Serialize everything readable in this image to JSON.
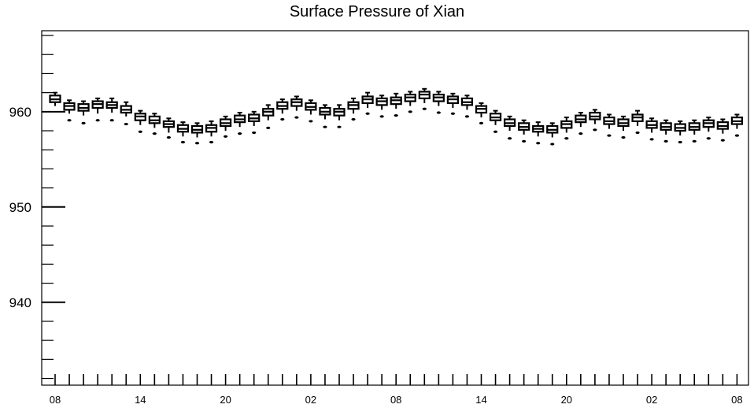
{
  "chart_data": {
    "type": "box",
    "title": "Surface Pressure of Xian",
    "xlabel": "",
    "ylabel": "",
    "ylim": [
      931.3,
      968.5
    ],
    "y_major_ticks": [
      940,
      950,
      960
    ],
    "x_tick_labels": [
      "08",
      "14",
      "20",
      "02",
      "08",
      "14",
      "20",
      "02",
      "08"
    ],
    "x_label_interval_hours": 6,
    "time_step_hours": 1,
    "grid": false,
    "legend": "none",
    "boxes": [
      {
        "t": 0,
        "q1": 961.0,
        "median": 961.3,
        "q3": 961.7,
        "whisker_low": 960.6,
        "whisker_high": 962.0,
        "outlier": null
      },
      {
        "t": 1,
        "q1": 960.2,
        "median": 960.6,
        "q3": 960.9,
        "whisker_low": 959.8,
        "whisker_high": 961.2,
        "outlier": 959.1
      },
      {
        "t": 2,
        "q1": 960.1,
        "median": 960.4,
        "q3": 960.8,
        "whisker_low": 959.6,
        "whisker_high": 961.1,
        "outlier": 958.8
      },
      {
        "t": 3,
        "q1": 960.4,
        "median": 960.8,
        "q3": 961.1,
        "whisker_low": 959.8,
        "whisker_high": 961.4,
        "outlier": 959.1
      },
      {
        "t": 4,
        "q1": 960.4,
        "median": 960.7,
        "q3": 961.0,
        "whisker_low": 959.9,
        "whisker_high": 961.4,
        "outlier": 959.1
      },
      {
        "t": 5,
        "q1": 959.9,
        "median": 960.2,
        "q3": 960.6,
        "whisker_low": 959.5,
        "whisker_high": 961.0,
        "outlier": 958.7
      },
      {
        "t": 6,
        "q1": 959.1,
        "median": 959.5,
        "q3": 959.8,
        "whisker_low": 958.6,
        "whisker_high": 960.1,
        "outlier": 957.9
      },
      {
        "t": 7,
        "q1": 958.8,
        "median": 959.1,
        "q3": 959.5,
        "whisker_low": 958.3,
        "whisker_high": 959.8,
        "outlier": 957.7
      },
      {
        "t": 8,
        "q1": 958.4,
        "median": 958.7,
        "q3": 959.0,
        "whisker_low": 957.8,
        "whisker_high": 959.3,
        "outlier": 957.3
      },
      {
        "t": 9,
        "q1": 957.9,
        "median": 958.2,
        "q3": 958.6,
        "whisker_low": 957.4,
        "whisker_high": 958.9,
        "outlier": 956.8
      },
      {
        "t": 10,
        "q1": 957.8,
        "median": 958.1,
        "q3": 958.5,
        "whisker_low": 957.3,
        "whisker_high": 958.8,
        "outlier": 956.7
      },
      {
        "t": 11,
        "q1": 957.9,
        "median": 958.3,
        "q3": 958.6,
        "whisker_low": 957.4,
        "whisker_high": 959.0,
        "outlier": 956.8
      },
      {
        "t": 12,
        "q1": 958.5,
        "median": 958.8,
        "q3": 959.2,
        "whisker_low": 958.0,
        "whisker_high": 959.5,
        "outlier": 957.4
      },
      {
        "t": 13,
        "q1": 958.9,
        "median": 959.2,
        "q3": 959.6,
        "whisker_low": 958.4,
        "whisker_high": 959.9,
        "outlier": 957.7
      },
      {
        "t": 14,
        "q1": 959.0,
        "median": 959.3,
        "q3": 959.7,
        "whisker_low": 958.5,
        "whisker_high": 960.0,
        "outlier": 957.8
      },
      {
        "t": 15,
        "q1": 959.6,
        "median": 960.0,
        "q3": 960.3,
        "whisker_low": 959.1,
        "whisker_high": 960.7,
        "outlier": 958.3
      },
      {
        "t": 16,
        "q1": 960.3,
        "median": 960.6,
        "q3": 961.0,
        "whisker_low": 959.8,
        "whisker_high": 961.3,
        "outlier": 959.2
      },
      {
        "t": 17,
        "q1": 960.6,
        "median": 961.0,
        "q3": 961.3,
        "whisker_low": 960.1,
        "whisker_high": 961.6,
        "outlier": 959.4
      },
      {
        "t": 18,
        "q1": 960.2,
        "median": 960.5,
        "q3": 960.9,
        "whisker_low": 959.7,
        "whisker_high": 961.2,
        "outlier": 959.0
      },
      {
        "t": 19,
        "q1": 959.7,
        "median": 960.0,
        "q3": 960.4,
        "whisker_low": 959.2,
        "whisker_high": 960.7,
        "outlier": 958.4
      },
      {
        "t": 20,
        "q1": 959.6,
        "median": 960.0,
        "q3": 960.3,
        "whisker_low": 959.1,
        "whisker_high": 960.7,
        "outlier": 958.4
      },
      {
        "t": 21,
        "q1": 960.3,
        "median": 960.7,
        "q3": 961.0,
        "whisker_low": 959.8,
        "whisker_high": 961.4,
        "outlier": 959.2
      },
      {
        "t": 22,
        "q1": 960.9,
        "median": 961.3,
        "q3": 961.6,
        "whisker_low": 960.4,
        "whisker_high": 962.0,
        "outlier": 959.8
      },
      {
        "t": 23,
        "q1": 960.7,
        "median": 961.1,
        "q3": 961.4,
        "whisker_low": 960.2,
        "whisker_high": 961.7,
        "outlier": 959.5
      },
      {
        "t": 24,
        "q1": 960.8,
        "median": 961.2,
        "q3": 961.5,
        "whisker_low": 960.3,
        "whisker_high": 961.9,
        "outlier": 959.6
      },
      {
        "t": 25,
        "q1": 961.1,
        "median": 961.5,
        "q3": 961.8,
        "whisker_low": 960.6,
        "whisker_high": 962.1,
        "outlier": 960.0
      },
      {
        "t": 26,
        "q1": 961.4,
        "median": 961.8,
        "q3": 962.1,
        "whisker_low": 960.9,
        "whisker_high": 962.4,
        "outlier": 960.3
      },
      {
        "t": 27,
        "q1": 961.1,
        "median": 961.5,
        "q3": 961.8,
        "whisker_low": 960.6,
        "whisker_high": 962.1,
        "outlier": 959.9
      },
      {
        "t": 28,
        "q1": 960.9,
        "median": 961.3,
        "q3": 961.6,
        "whisker_low": 960.4,
        "whisker_high": 961.9,
        "outlier": 959.8
      },
      {
        "t": 29,
        "q1": 960.7,
        "median": 961.0,
        "q3": 961.4,
        "whisker_low": 960.2,
        "whisker_high": 961.7,
        "outlier": 959.5
      },
      {
        "t": 30,
        "q1": 959.9,
        "median": 960.3,
        "q3": 960.6,
        "whisker_low": 959.4,
        "whisker_high": 960.9,
        "outlier": 958.8
      },
      {
        "t": 31,
        "q1": 959.1,
        "median": 959.4,
        "q3": 959.8,
        "whisker_low": 958.6,
        "whisker_high": 960.1,
        "outlier": 957.9
      },
      {
        "t": 32,
        "q1": 958.5,
        "median": 958.8,
        "q3": 959.2,
        "whisker_low": 958.0,
        "whisker_high": 959.5,
        "outlier": 957.2
      },
      {
        "t": 33,
        "q1": 958.1,
        "median": 958.4,
        "q3": 958.8,
        "whisker_low": 957.6,
        "whisker_high": 959.1,
        "outlier": 956.9
      },
      {
        "t": 34,
        "q1": 957.9,
        "median": 958.2,
        "q3": 958.5,
        "whisker_low": 957.4,
        "whisker_high": 958.9,
        "outlier": 956.7
      },
      {
        "t": 35,
        "q1": 957.8,
        "median": 958.1,
        "q3": 958.5,
        "whisker_low": 957.3,
        "whisker_high": 958.8,
        "outlier": 956.6
      },
      {
        "t": 36,
        "q1": 958.3,
        "median": 958.7,
        "q3": 959.0,
        "whisker_low": 957.8,
        "whisker_high": 959.4,
        "outlier": 957.2
      },
      {
        "t": 37,
        "q1": 958.9,
        "median": 959.2,
        "q3": 959.6,
        "whisker_low": 958.4,
        "whisker_high": 959.9,
        "outlier": 957.7
      },
      {
        "t": 38,
        "q1": 959.2,
        "median": 959.5,
        "q3": 959.9,
        "whisker_low": 958.7,
        "whisker_high": 960.2,
        "outlier": 958.1
      },
      {
        "t": 39,
        "q1": 958.7,
        "median": 959.0,
        "q3": 959.4,
        "whisker_low": 958.2,
        "whisker_high": 959.7,
        "outlier": 957.5
      },
      {
        "t": 40,
        "q1": 958.5,
        "median": 958.8,
        "q3": 959.2,
        "whisker_low": 958.0,
        "whisker_high": 959.5,
        "outlier": 957.3
      },
      {
        "t": 41,
        "q1": 959.0,
        "median": 959.4,
        "q3": 959.7,
        "whisker_low": 958.5,
        "whisker_high": 960.1,
        "outlier": 957.8
      },
      {
        "t": 42,
        "q1": 958.3,
        "median": 958.6,
        "q3": 959.0,
        "whisker_low": 957.8,
        "whisker_high": 959.3,
        "outlier": 957.1
      },
      {
        "t": 43,
        "q1": 958.1,
        "median": 958.4,
        "q3": 958.8,
        "whisker_low": 957.6,
        "whisker_high": 959.1,
        "outlier": 956.9
      },
      {
        "t": 44,
        "q1": 958.0,
        "median": 958.3,
        "q3": 958.7,
        "whisker_low": 957.5,
        "whisker_high": 959.0,
        "outlier": 956.8
      },
      {
        "t": 45,
        "q1": 958.1,
        "median": 958.4,
        "q3": 958.8,
        "whisker_low": 957.6,
        "whisker_high": 959.1,
        "outlier": 956.9
      },
      {
        "t": 46,
        "q1": 958.4,
        "median": 958.8,
        "q3": 959.1,
        "whisker_low": 957.9,
        "whisker_high": 959.4,
        "outlier": 957.2
      },
      {
        "t": 47,
        "q1": 958.2,
        "median": 958.5,
        "q3": 958.9,
        "whisker_low": 957.7,
        "whisker_high": 959.2,
        "outlier": 957.0
      },
      {
        "t": 48,
        "q1": 958.7,
        "median": 959.0,
        "q3": 959.4,
        "whisker_low": 958.2,
        "whisker_high": 959.7,
        "outlier": 957.5
      }
    ]
  },
  "colors": {
    "background": "#ffffff",
    "axis": "#000000",
    "box": "#000000"
  }
}
